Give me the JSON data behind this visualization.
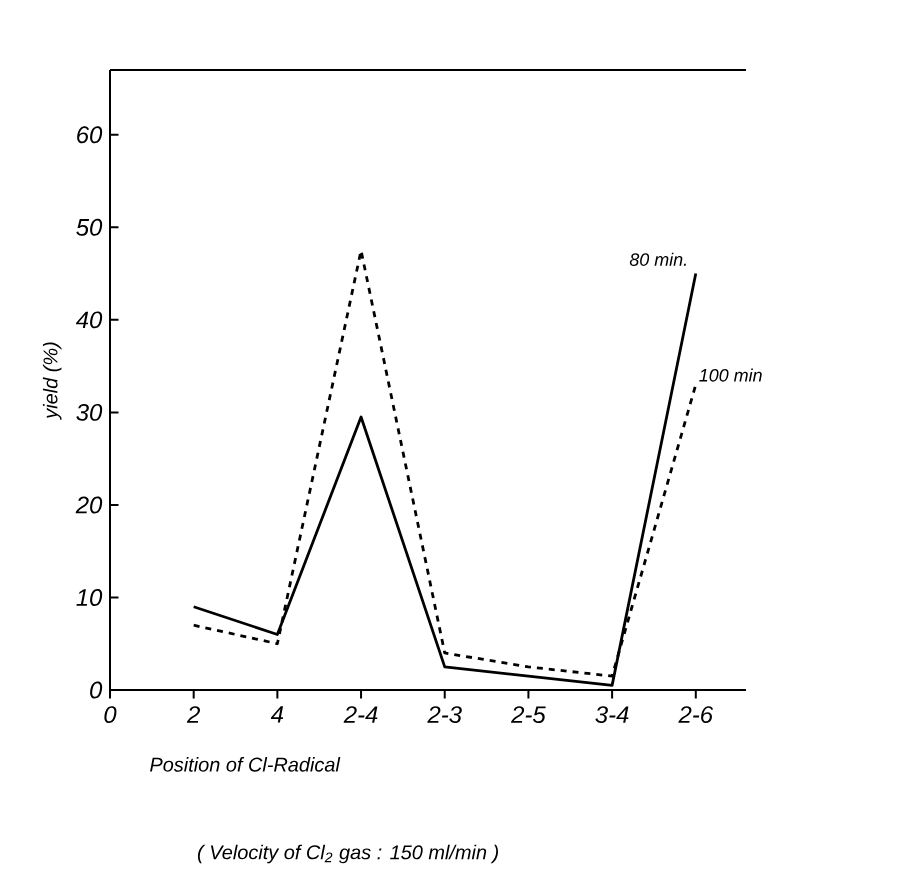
{
  "chart_data": {
    "type": "line",
    "categories": [
      "0",
      "2",
      "4",
      "2-4",
      "2-3",
      "2-5",
      "3-4",
      "2-6"
    ],
    "series": [
      {
        "name": "80 min.",
        "color": "#000000",
        "line_style": "solid",
        "values": [
          null,
          9,
          6,
          29.5,
          2.5,
          1.5,
          0.5,
          45
        ]
      },
      {
        "name": "100 min",
        "color": "#000000",
        "line_style": "dashed",
        "values": [
          null,
          7,
          5,
          47.5,
          4,
          2.5,
          1.5,
          33
        ]
      }
    ],
    "xlabel": "Position of Cl-Radical",
    "ylabel": "yield (%)",
    "annotations": [
      "( Velocity of Cl$_{2}$ gas : 150 ml/min )"
    ],
    "ylim": [
      0,
      67
    ],
    "yticks": [
      0,
      10,
      20,
      30,
      40,
      50,
      60
    ],
    "grid": false,
    "marker": "none"
  }
}
